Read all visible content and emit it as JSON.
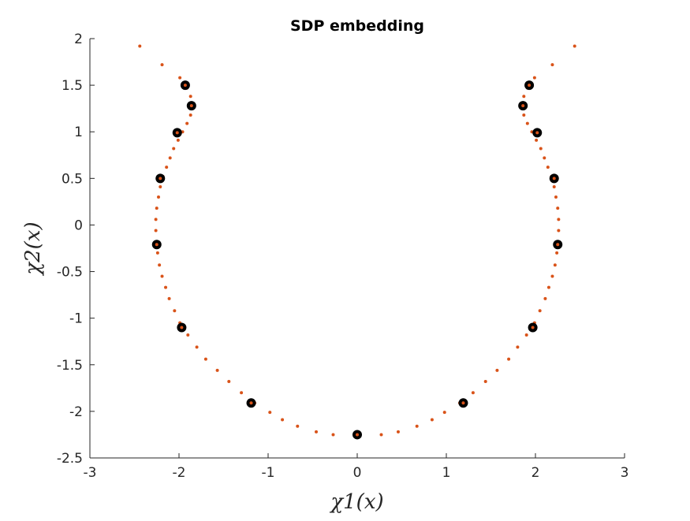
{
  "chart_data": {
    "type": "scatter",
    "title": "SDP embedding",
    "xlabel": "χ1(x)",
    "ylabel": "χ2(x)",
    "xlim": [
      -3,
      3
    ],
    "ylim": [
      -2.5,
      2
    ],
    "xticks": [
      "-3",
      "-2",
      "-1",
      "0",
      "1",
      "2",
      "3"
    ],
    "yticks": [
      "2",
      "1.5",
      "1",
      "0.5",
      "0",
      "-0.5",
      "-1",
      "-1.5",
      "-2",
      "-2.5"
    ],
    "grid": false,
    "legend": "none",
    "colors": {
      "curve": "#d95319",
      "points": "#000000",
      "axis": "#262626"
    },
    "series": [
      {
        "x": [
          -2.44,
          -2.19,
          -1.99,
          -1.91,
          -1.87,
          -1.86,
          -1.87,
          -1.91,
          -1.96,
          -2.01,
          -2.06,
          -2.1,
          -2.14,
          -2.18,
          -2.21,
          -2.23,
          -2.25,
          -2.26,
          -2.26,
          -2.25,
          -2.24,
          -2.22,
          -2.19,
          -2.15,
          -2.11,
          -2.05,
          -1.99,
          -1.9,
          -1.8,
          -1.7,
          -1.57,
          -1.44,
          -1.3,
          -1.15,
          -0.98,
          -0.84,
          -0.67,
          -0.46,
          -0.27,
          0.0,
          0.27,
          0.46,
          0.67,
          0.84,
          0.98,
          1.15,
          1.3,
          1.44,
          1.57,
          1.7,
          1.8,
          1.9,
          1.99,
          2.05,
          2.11,
          2.15,
          2.19,
          2.22,
          2.24,
          2.25,
          2.26,
          2.26,
          2.25,
          2.23,
          2.21,
          2.18,
          2.14,
          2.1,
          2.06,
          2.01,
          1.96,
          1.91,
          1.87,
          1.86,
          1.87,
          1.91,
          1.99,
          2.19,
          2.44
        ],
        "y": [
          1.92,
          1.72,
          1.58,
          1.47,
          1.38,
          1.28,
          1.18,
          1.09,
          1.0,
          0.91,
          0.82,
          0.72,
          0.62,
          0.52,
          0.41,
          0.3,
          0.18,
          0.06,
          -0.06,
          -0.18,
          -0.3,
          -0.43,
          -0.55,
          -0.67,
          -0.79,
          -0.92,
          -1.05,
          -1.18,
          -1.31,
          -1.44,
          -1.56,
          -1.68,
          -1.8,
          -1.91,
          -2.01,
          -2.09,
          -2.16,
          -2.22,
          -2.25,
          -2.26,
          -2.25,
          -2.22,
          -2.16,
          -2.09,
          -2.01,
          -1.91,
          -1.8,
          -1.68,
          -1.56,
          -1.44,
          -1.31,
          -1.18,
          -1.05,
          -0.92,
          -0.79,
          -0.67,
          -0.55,
          -0.43,
          -0.3,
          -0.18,
          -0.06,
          0.06,
          0.18,
          0.3,
          0.41,
          0.52,
          0.62,
          0.72,
          0.82,
          0.91,
          1.0,
          1.09,
          1.18,
          1.28,
          1.38,
          1.47,
          1.58,
          1.72,
          1.92
        ]
      },
      {
        "x": [
          -1.93,
          -1.86,
          -2.02,
          -2.21,
          -2.25,
          -1.97,
          -1.19,
          0.0,
          1.19,
          1.97,
          2.25,
          2.21,
          2.02,
          1.86,
          1.93
        ],
        "y": [
          1.5,
          1.28,
          0.99,
          0.5,
          -0.21,
          -1.1,
          -1.91,
          -2.25,
          -1.91,
          -1.1,
          -0.21,
          0.5,
          0.99,
          1.28,
          1.5
        ]
      }
    ]
  }
}
